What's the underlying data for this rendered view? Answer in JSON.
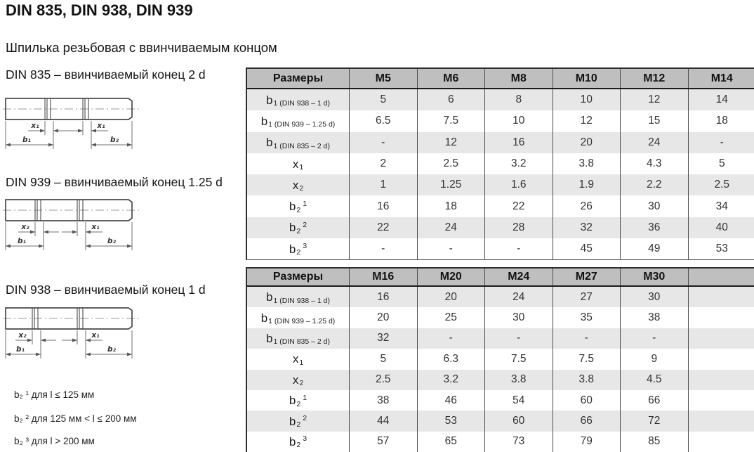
{
  "page": {
    "title": "DIN 835, DIN 938, DIN 939",
    "subtitle": "Шпилька резьбовая с ввинчиваемым концом"
  },
  "drawings": [
    {
      "caption": "DIN 835 – ввинчиваемый конец 2 d",
      "labels": {
        "left_x": "x₁",
        "right_x": "x₁",
        "left_b": "b₁",
        "right_b": "b₂"
      }
    },
    {
      "caption": "DIN 939 – ввинчиваемый конец 1.25 d",
      "labels": {
        "left_x": "x₂",
        "right_x": "x₁",
        "left_b": "b₁",
        "right_b": "b₂"
      }
    },
    {
      "caption": "DIN 938 – ввинчиваемый конец 1 d",
      "labels": {
        "left_x": "x₂",
        "right_x": "x₁",
        "left_b": "b₁",
        "right_b": "b₂"
      }
    }
  ],
  "footnotes": [
    "b₂ ¹ для l ≤ 125 мм",
    "b₂ ² для 125 мм < l ≤ 200 мм",
    "b₂ ³ для l > 200 мм"
  ],
  "tables": [
    {
      "header": {
        "label": "Размеры",
        "columns": [
          "M5",
          "M6",
          "M8",
          "M10",
          "M12",
          "M14"
        ]
      },
      "rows": [
        {
          "label": {
            "base": "b",
            "sub": "1 (DIN 938 – 1 d)"
          },
          "values": [
            "5",
            "6",
            "8",
            "10",
            "12",
            "14"
          ]
        },
        {
          "label": {
            "base": "b",
            "sub": "1 (DIN 939 – 1.25 d)"
          },
          "values": [
            "6.5",
            "7.5",
            "10",
            "12",
            "15",
            "18"
          ]
        },
        {
          "label": {
            "base": "b",
            "sub": "1 (DIN 835 – 2 d)"
          },
          "values": [
            "-",
            "12",
            "16",
            "20",
            "24",
            "-"
          ]
        },
        {
          "label": {
            "base": "x",
            "sub": "1"
          },
          "values": [
            "2",
            "2.5",
            "3.2",
            "3.8",
            "4.3",
            "5"
          ]
        },
        {
          "label": {
            "base": "x",
            "sub": "2"
          },
          "values": [
            "1",
            "1.25",
            "1.6",
            "1.9",
            "2.2",
            "2.5"
          ]
        },
        {
          "label": {
            "base": "b",
            "sub": "2",
            "sup": "1"
          },
          "values": [
            "16",
            "18",
            "22",
            "26",
            "30",
            "34"
          ]
        },
        {
          "label": {
            "base": "b",
            "sub": "2",
            "sup": "2"
          },
          "values": [
            "22",
            "24",
            "28",
            "32",
            "36",
            "40"
          ]
        },
        {
          "label": {
            "base": "b",
            "sub": "2",
            "sup": "3"
          },
          "values": [
            "-",
            "-",
            "-",
            "45",
            "49",
            "53"
          ]
        }
      ]
    },
    {
      "header": {
        "label": "Размеры",
        "columns": [
          "M16",
          "M20",
          "M24",
          "M27",
          "M30",
          ""
        ]
      },
      "rows": [
        {
          "label": {
            "base": "b",
            "sub": "1 (DIN 938 – 1 d)"
          },
          "values": [
            "16",
            "20",
            "24",
            "27",
            "30",
            ""
          ]
        },
        {
          "label": {
            "base": "b",
            "sub": "1 (DIN 939 – 1.25 d)"
          },
          "values": [
            "20",
            "25",
            "30",
            "35",
            "38",
            ""
          ]
        },
        {
          "label": {
            "base": "b",
            "sub": "1 (DIN 835 – 2 d)"
          },
          "values": [
            "32",
            "-",
            "-",
            "-",
            "-",
            ""
          ]
        },
        {
          "label": {
            "base": "x",
            "sub": "1"
          },
          "values": [
            "5",
            "6.3",
            "7.5",
            "7.5",
            "9",
            ""
          ]
        },
        {
          "label": {
            "base": "x",
            "sub": "2"
          },
          "values": [
            "2.5",
            "3.2",
            "3.8",
            "3.8",
            "4.5",
            ""
          ]
        },
        {
          "label": {
            "base": "b",
            "sub": "2",
            "sup": "1"
          },
          "values": [
            "38",
            "46",
            "54",
            "60",
            "66",
            ""
          ]
        },
        {
          "label": {
            "base": "b",
            "sub": "2",
            "sup": "2"
          },
          "values": [
            "44",
            "53",
            "60",
            "66",
            "72",
            ""
          ]
        },
        {
          "label": {
            "base": "b",
            "sub": "2",
            "sup": "3"
          },
          "values": [
            "57",
            "65",
            "73",
            "79",
            "85",
            ""
          ]
        }
      ]
    }
  ],
  "colors": {
    "header_bg": "#bfbfbf",
    "row_shaded": "#e7e7e7",
    "row_plain": "#ffffff",
    "border_dark": "#2e2e2e",
    "grid": "#4d4d4d",
    "text": "#333333"
  }
}
